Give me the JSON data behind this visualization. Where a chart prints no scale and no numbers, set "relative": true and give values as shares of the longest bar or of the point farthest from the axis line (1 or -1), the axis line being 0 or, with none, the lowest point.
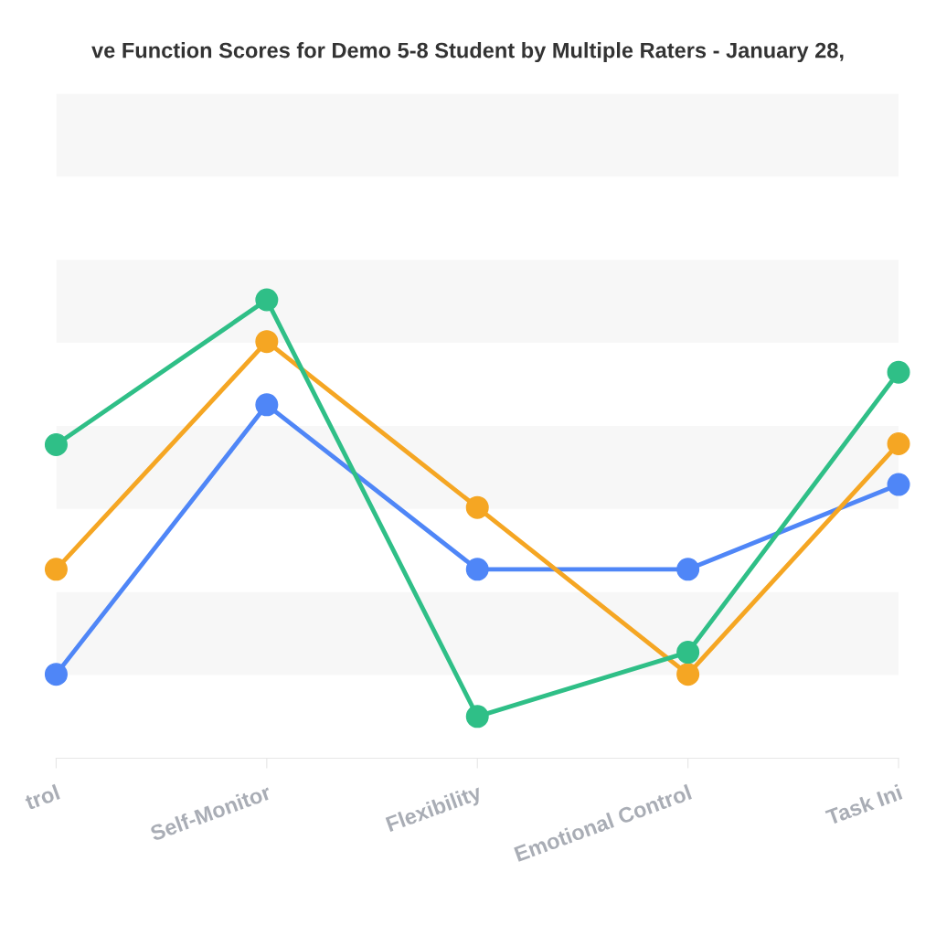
{
  "chart_data": {
    "type": "line",
    "title": "ve Function Scores for Demo 5-8 Student by Multiple Raters - January 28,",
    "categories": [
      "trol",
      "Self-Monitor",
      "Flexibility",
      "Emotional Control",
      "Task Ini"
    ],
    "relative": true,
    "legend": false,
    "marker": "circle",
    "line_style": "solid",
    "series": [
      {
        "color": "#4f86f7",
        "values": [
          0.183,
          0.771,
          0.412,
          0.412,
          0.597
        ]
      },
      {
        "color": "#f5a623",
        "values": [
          0.412,
          0.909,
          0.547,
          0.183,
          0.686
        ]
      },
      {
        "color": "#2fbf87",
        "values": [
          0.684,
          1.0,
          0.091,
          0.231,
          0.842
        ]
      }
    ]
  }
}
